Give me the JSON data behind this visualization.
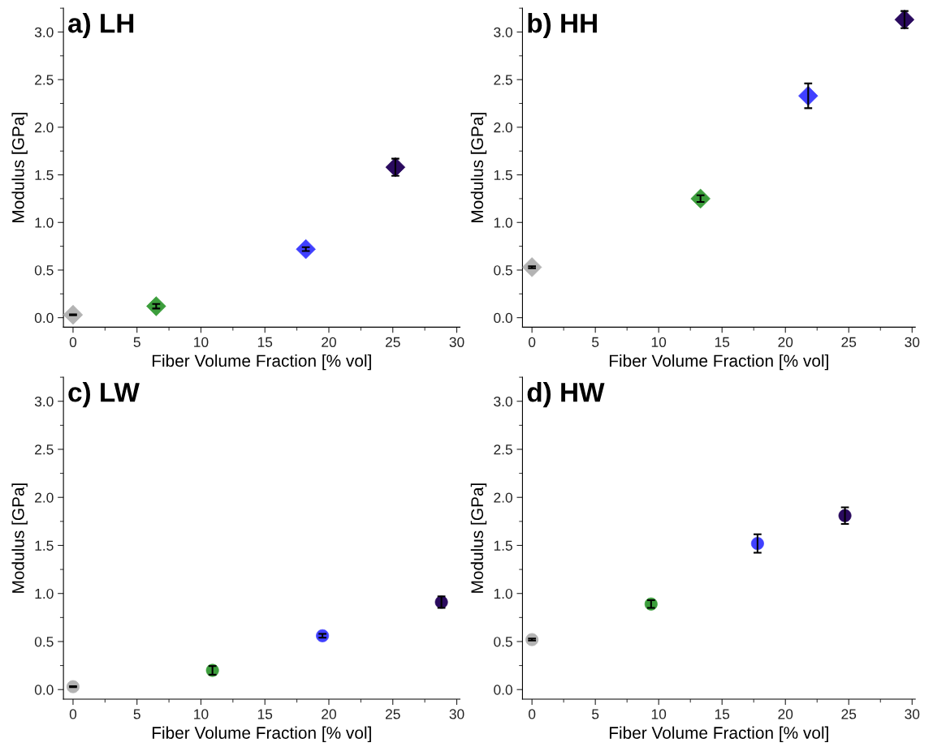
{
  "chart_data": [
    {
      "type": "scatter",
      "title": "a) LH",
      "xlabel": "Fiber Volume Fraction [% vol]",
      "ylabel": "Modulus [GPa]",
      "marker": "diamond",
      "xlim": [
        -0.75,
        30.25
      ],
      "ylim": [
        -0.1,
        3.25
      ],
      "xticks": [
        0,
        5,
        10,
        15,
        20,
        25,
        30
      ],
      "yticks": [
        {
          "value": 0,
          "label": "0.0"
        },
        {
          "value": 0.5,
          "label": "0.5"
        },
        {
          "value": 1,
          "label": "1.0"
        },
        {
          "value": 1.5,
          "label": "1.5"
        },
        {
          "value": 2,
          "label": "2.0"
        },
        {
          "value": 2.5,
          "label": "2.5"
        },
        {
          "value": 3,
          "label": "3.0"
        }
      ],
      "series": [
        {
          "color": "#b3b3b3",
          "x": [
            0
          ],
          "values": [
            0.03
          ],
          "errors": [
            0.005
          ]
        },
        {
          "color": "#3c9e3c",
          "x": [
            6.5
          ],
          "values": [
            0.12
          ],
          "errors": [
            0.024
          ]
        },
        {
          "color": "#4040ff",
          "x": [
            18.2
          ],
          "values": [
            0.72
          ],
          "errors": [
            0.02
          ]
        },
        {
          "color": "#2a0a5e",
          "x": [
            25.2
          ],
          "values": [
            1.58
          ],
          "errors": [
            0.09
          ]
        }
      ]
    },
    {
      "type": "scatter",
      "title": "b) HH",
      "xlabel": "Fiber Volume Fraction [% vol]",
      "ylabel": "Modulus [GPa]",
      "marker": "diamond",
      "xlim": [
        -0.75,
        30.25
      ],
      "ylim": [
        -0.1,
        3.25
      ],
      "xticks": [
        0,
        5,
        10,
        15,
        20,
        25,
        30
      ],
      "yticks": [
        {
          "value": 0,
          "label": "0.0"
        },
        {
          "value": 0.5,
          "label": "0.5"
        },
        {
          "value": 1,
          "label": "1.0"
        },
        {
          "value": 1.5,
          "label": "1.5"
        },
        {
          "value": 2,
          "label": "2.0"
        },
        {
          "value": 2.5,
          "label": "2.5"
        },
        {
          "value": 3,
          "label": "3.0"
        }
      ],
      "series": [
        {
          "color": "#b3b3b3",
          "x": [
            0
          ],
          "values": [
            0.53
          ],
          "errors": [
            0.01
          ]
        },
        {
          "color": "#3c9e3c",
          "x": [
            13.3
          ],
          "values": [
            1.25
          ],
          "errors": [
            0.035
          ]
        },
        {
          "color": "#4040ff",
          "x": [
            21.8
          ],
          "values": [
            2.33
          ],
          "errors": [
            0.13
          ]
        },
        {
          "color": "#2a0a5e",
          "x": [
            29.4
          ],
          "values": [
            3.13
          ],
          "errors": [
            0.09
          ]
        }
      ]
    },
    {
      "type": "scatter",
      "title": "c) LW",
      "xlabel": "Fiber Volume Fraction [% vol]",
      "ylabel": "Modulus [GPa]",
      "marker": "circle",
      "xlim": [
        -0.75,
        30.25
      ],
      "ylim": [
        -0.1,
        3.25
      ],
      "xticks": [
        0,
        5,
        10,
        15,
        20,
        25,
        30
      ],
      "yticks": [
        {
          "value": 0,
          "label": "0.0"
        },
        {
          "value": 0.5,
          "label": "0.5"
        },
        {
          "value": 1,
          "label": "1.0"
        },
        {
          "value": 1.5,
          "label": "1.5"
        },
        {
          "value": 2,
          "label": "2.0"
        },
        {
          "value": 2.5,
          "label": "2.5"
        },
        {
          "value": 3,
          "label": "3.0"
        }
      ],
      "series": [
        {
          "color": "#b3b3b3",
          "x": [
            0
          ],
          "values": [
            0.03
          ],
          "errors": [
            0.005
          ]
        },
        {
          "color": "#3c9e3c",
          "x": [
            10.9
          ],
          "values": [
            0.2
          ],
          "errors": [
            0.045
          ]
        },
        {
          "color": "#4040ff",
          "x": [
            19.5
          ],
          "values": [
            0.56
          ],
          "errors": [
            0.02
          ]
        },
        {
          "color": "#2a0a5e",
          "x": [
            28.8
          ],
          "values": [
            0.91
          ],
          "errors": [
            0.06
          ]
        }
      ]
    },
    {
      "type": "scatter",
      "title": "d) HW",
      "xlabel": "Fiber Volume Fraction [% vol]",
      "ylabel": "Modulus [GPa]",
      "marker": "circle",
      "xlim": [
        -0.75,
        30.25
      ],
      "ylim": [
        -0.1,
        3.25
      ],
      "xticks": [
        0,
        5,
        10,
        15,
        20,
        25,
        30
      ],
      "yticks": [
        {
          "value": 0,
          "label": "0.0"
        },
        {
          "value": 0.5,
          "label": "0.5"
        },
        {
          "value": 1,
          "label": "1.0"
        },
        {
          "value": 1.5,
          "label": "1.5"
        },
        {
          "value": 2,
          "label": "2.0"
        },
        {
          "value": 2.5,
          "label": "2.5"
        },
        {
          "value": 3,
          "label": "3.0"
        }
      ],
      "series": [
        {
          "color": "#b3b3b3",
          "x": [
            0
          ],
          "values": [
            0.52
          ],
          "errors": [
            0.01
          ]
        },
        {
          "color": "#3c9e3c",
          "x": [
            9.4
          ],
          "values": [
            0.89
          ],
          "errors": [
            0.04
          ]
        },
        {
          "color": "#4040ff",
          "x": [
            17.8
          ],
          "values": [
            1.52
          ],
          "errors": [
            0.096
          ]
        },
        {
          "color": "#2a0a5e",
          "x": [
            24.7
          ],
          "values": [
            1.81
          ],
          "errors": [
            0.087
          ]
        }
      ]
    }
  ]
}
